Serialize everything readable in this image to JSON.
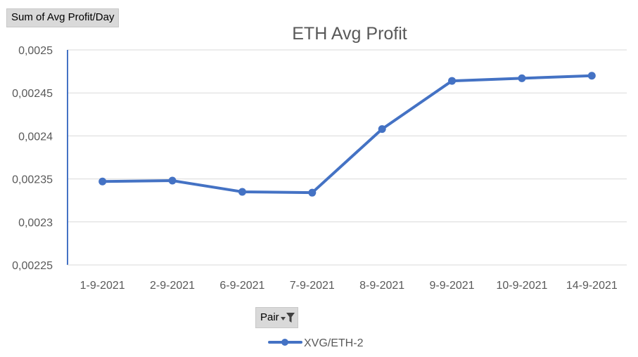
{
  "chart_data": {
    "type": "line",
    "title": "ETH Avg Profit",
    "xlabel": "",
    "ylabel": "",
    "categories": [
      "1-9-2021",
      "2-9-2021",
      "6-9-2021",
      "7-9-2021",
      "8-9-2021",
      "9-9-2021",
      "10-9-2021",
      "14-9-2021"
    ],
    "series": [
      {
        "name": "XVG/ETH-2",
        "color": "#4472c4",
        "values": [
          0.002347,
          0.002348,
          0.002335,
          0.002334,
          0.002408,
          0.002464,
          0.002467,
          0.00247
        ]
      }
    ],
    "ylim": [
      0.00225,
      0.0025
    ],
    "yticks": [
      0.00225,
      0.0023,
      0.00235,
      0.0024,
      0.00245,
      0.0025
    ],
    "ytick_labels": [
      "0,00225",
      "0,0023",
      "0,00235",
      "0,0024",
      "0,00245",
      "0,0025"
    ],
    "grid": true,
    "legend_position": "bottom"
  },
  "pivot": {
    "value_field_label": "Sum of Avg Profit/Day",
    "axis_field_label": "Pair",
    "filter_icon": "filter-dropdown-icon"
  }
}
